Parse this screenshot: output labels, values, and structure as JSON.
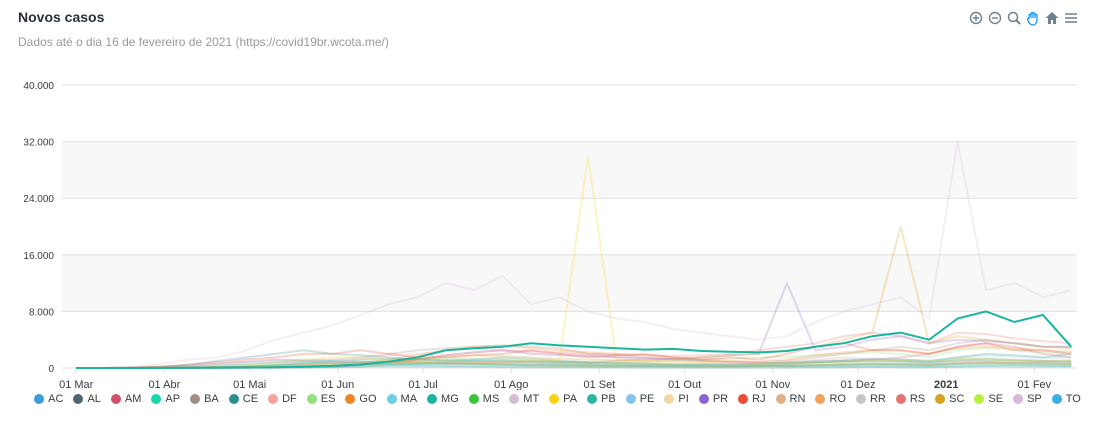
{
  "chart_data": {
    "type": "line",
    "title": "Novos casos",
    "subtitle": "Dados até o dia 16 de fevereiro de 2021 (https://covid19br.wcota.me/)",
    "highlighted": "MG",
    "grid": true,
    "ylim": [
      0,
      40000
    ],
    "yticks": [
      {
        "value": 0,
        "label": "0"
      },
      {
        "value": 8000,
        "label": "8.000"
      },
      {
        "value": 16000,
        "label": "16.000"
      },
      {
        "value": 24000,
        "label": "24.000"
      },
      {
        "value": 32000,
        "label": "32.000"
      },
      {
        "value": 40000,
        "label": "40.000"
      }
    ],
    "xlim": [
      "2020-02-25",
      "2021-02-16"
    ],
    "xticks": [
      {
        "value": "2020-03-01",
        "label": "01 Mar"
      },
      {
        "value": "2020-04-01",
        "label": "01 Abr"
      },
      {
        "value": "2020-05-01",
        "label": "01 Mai"
      },
      {
        "value": "2020-06-01",
        "label": "01 Jun"
      },
      {
        "value": "2020-07-01",
        "label": "01 Jul"
      },
      {
        "value": "2020-08-01",
        "label": "01 Ago"
      },
      {
        "value": "2020-09-01",
        "label": "01 Set"
      },
      {
        "value": "2020-10-01",
        "label": "01 Out"
      },
      {
        "value": "2020-11-01",
        "label": "01 Nov"
      },
      {
        "value": "2020-12-01",
        "label": "01 Dez"
      },
      {
        "value": "2021-01-01",
        "label": "2021"
      },
      {
        "value": "2021-02-01",
        "label": "01 Fev"
      }
    ],
    "x": [
      "2020-03-01",
      "2020-03-11",
      "2020-03-21",
      "2020-03-31",
      "2020-04-10",
      "2020-04-20",
      "2020-04-30",
      "2020-05-10",
      "2020-05-20",
      "2020-05-30",
      "2020-06-09",
      "2020-06-19",
      "2020-06-29",
      "2020-07-09",
      "2020-07-19",
      "2020-07-29",
      "2020-08-08",
      "2020-08-18",
      "2020-08-28",
      "2020-09-07",
      "2020-09-17",
      "2020-09-27",
      "2020-10-07",
      "2020-10-17",
      "2020-10-27",
      "2020-11-06",
      "2020-11-16",
      "2020-11-26",
      "2020-12-06",
      "2020-12-16",
      "2020-12-26",
      "2021-01-05",
      "2021-01-15",
      "2021-01-25",
      "2021-02-04",
      "2021-02-14"
    ],
    "series": [
      {
        "name": "AC",
        "color": "#3d9bd8",
        "values": [
          0,
          0,
          0,
          2,
          10,
          20,
          40,
          80,
          120,
          150,
          180,
          200,
          200,
          180,
          150,
          120,
          100,
          90,
          80,
          70,
          60,
          50,
          40,
          40,
          50,
          60,
          80,
          120,
          150,
          200,
          180,
          200,
          220,
          200,
          180,
          250
        ]
      },
      {
        "name": "AL",
        "color": "#4f6670",
        "values": [
          0,
          0,
          5,
          10,
          40,
          100,
          200,
          400,
          600,
          700,
          800,
          900,
          800,
          700,
          600,
          500,
          400,
          350,
          300,
          250,
          250,
          200,
          200,
          200,
          250,
          300,
          400,
          500,
          600,
          600,
          500,
          700,
          800,
          700,
          700,
          600
        ]
      },
      {
        "name": "AM",
        "color": "#d1506a",
        "values": [
          0,
          0,
          20,
          100,
          300,
          600,
          900,
          1200,
          1000,
          900,
          800,
          700,
          700,
          600,
          700,
          800,
          900,
          800,
          700,
          1000,
          1200,
          1300,
          1000,
          800,
          700,
          700,
          900,
          1000,
          1200,
          1500,
          2000,
          3000,
          3500,
          3000,
          2000,
          1500
        ]
      },
      {
        "name": "AP",
        "color": "#15d8a8",
        "values": [
          0,
          0,
          5,
          20,
          50,
          100,
          200,
          300,
          400,
          500,
          600,
          500,
          400,
          300,
          300,
          250,
          200,
          150,
          150,
          200,
          300,
          400,
          500,
          500,
          300,
          200,
          150,
          200,
          150,
          100,
          100,
          200,
          300,
          400,
          300,
          200
        ]
      },
      {
        "name": "BA",
        "color": "#a08f82",
        "values": [
          0,
          0,
          20,
          60,
          150,
          300,
          500,
          700,
          1000,
          1200,
          1500,
          2000,
          2500,
          2800,
          3000,
          3200,
          3000,
          2800,
          2000,
          1800,
          1500,
          1200,
          1000,
          900,
          800,
          1000,
          1500,
          2000,
          2500,
          3000,
          2500,
          3500,
          4000,
          3500,
          3000,
          3000
        ]
      },
      {
        "name": "CE",
        "color": "#2c8f8c",
        "values": [
          0,
          5,
          60,
          200,
          500,
          1000,
          1500,
          2000,
          2500,
          2000,
          1800,
          1500,
          1200,
          1000,
          1200,
          1500,
          1300,
          1000,
          800,
          700,
          600,
          500,
          500,
          400,
          500,
          600,
          800,
          1000,
          1200,
          1200,
          1000,
          1500,
          2000,
          1800,
          1500,
          2000
        ]
      },
      {
        "name": "DF",
        "color": "#f7a2a3",
        "values": [
          0,
          2,
          30,
          50,
          80,
          100,
          150,
          200,
          400,
          800,
          1200,
          1800,
          2000,
          2500,
          2800,
          2500,
          2200,
          2000,
          1800,
          1500,
          1200,
          1000,
          800,
          700,
          600,
          800,
          1200,
          1500,
          1300,
          1200,
          900,
          1000,
          1200,
          1100,
          1000,
          1000
        ]
      },
      {
        "name": "ES",
        "color": "#8ee17c",
        "values": [
          0,
          0,
          10,
          40,
          80,
          150,
          300,
          500,
          700,
          800,
          900,
          1000,
          1200,
          1400,
          1300,
          1200,
          1000,
          900,
          800,
          700,
          800,
          1000,
          1200,
          1300,
          1500,
          1600,
          1800,
          2000,
          2200,
          2000,
          1500,
          2500,
          2800,
          2500,
          2200,
          2000
        ]
      },
      {
        "name": "GO",
        "color": "#f28424",
        "values": [
          0,
          0,
          5,
          15,
          30,
          50,
          80,
          120,
          200,
          400,
          700,
          1200,
          1800,
          2500,
          3000,
          3200,
          2800,
          2500,
          2200,
          2000,
          1800,
          1500,
          1200,
          1000,
          900,
          1200,
          1800,
          2200,
          2500,
          2500,
          2000,
          2800,
          3000,
          2800,
          2500,
          2300
        ]
      },
      {
        "name": "MA",
        "color": "#6ad1e3",
        "values": [
          0,
          0,
          2,
          20,
          80,
          300,
          600,
          800,
          900,
          700,
          600,
          500,
          400,
          450,
          500,
          450,
          400,
          350,
          300,
          250,
          200,
          200,
          250,
          200,
          250,
          300,
          350,
          400,
          450,
          500,
          400,
          600,
          700,
          650,
          600,
          700
        ]
      },
      {
        "name": "MG",
        "color": "#1ab59f",
        "values": [
          0,
          0,
          3,
          20,
          40,
          60,
          80,
          120,
          200,
          300,
          500,
          900,
          1500,
          2500,
          2800,
          3000,
          3500,
          3200,
          3000,
          2800,
          2600,
          2700,
          2400,
          2300,
          2200,
          2400,
          3000,
          3500,
          4500,
          5000,
          4000,
          7000,
          8000,
          6500,
          7500,
          3000
        ]
      },
      {
        "name": "MS",
        "color": "#3ac23a",
        "values": [
          0,
          0,
          5,
          10,
          15,
          20,
          30,
          40,
          60,
          100,
          200,
          400,
          600,
          900,
          1000,
          1100,
          1000,
          900,
          800,
          700,
          600,
          500,
          400,
          400,
          600,
          800,
          900,
          1000,
          1100,
          1000,
          800,
          1200,
          1300,
          1100,
          1000,
          1000
        ]
      },
      {
        "name": "MT",
        "color": "#d3bdd7",
        "values": [
          0,
          0,
          5,
          10,
          15,
          20,
          40,
          60,
          100,
          200,
          400,
          700,
          1000,
          1200,
          1300,
          1200,
          1100,
          1000,
          900,
          800,
          700,
          600,
          500,
          450,
          500,
          700,
          900,
          1000,
          1100,
          900,
          800,
          1300,
          1400,
          1200,
          1000,
          1100
        ]
      },
      {
        "name": "PA",
        "color": "#f9d218",
        "values": [
          0,
          0,
          0,
          10,
          50,
          150,
          400,
          800,
          1200,
          1500,
          1500,
          1200,
          1000,
          900,
          800,
          900,
          1000,
          1100,
          30000,
          1200,
          900,
          800,
          700,
          600,
          500,
          600,
          800,
          900,
          1000,
          1100,
          900,
          1300,
          1200,
          1100,
          1000,
          1000
        ]
      },
      {
        "name": "PB",
        "color": "#2cb5a0",
        "values": [
          0,
          0,
          2,
          10,
          40,
          100,
          200,
          400,
          700,
          1000,
          1200,
          1300,
          1200,
          1100,
          1000,
          900,
          800,
          700,
          600,
          500,
          400,
          350,
          300,
          300,
          400,
          500,
          700,
          800,
          900,
          900,
          700,
          1000,
          1000,
          900,
          900,
          800
        ]
      },
      {
        "name": "PE",
        "color": "#84c4ef",
        "values": [
          0,
          2,
          20,
          80,
          200,
          500,
          800,
          1000,
          1200,
          1000,
          900,
          800,
          600,
          700,
          900,
          1000,
          800,
          600,
          500,
          500,
          400,
          400,
          500,
          500,
          600,
          700,
          1000,
          1200,
          1300,
          1200,
          1000,
          1500,
          1800,
          1600,
          1400,
          1500
        ]
      },
      {
        "name": "PI",
        "color": "#f2d6a4",
        "values": [
          0,
          0,
          2,
          10,
          30,
          60,
          100,
          200,
          300,
          400,
          600,
          700,
          800,
          900,
          800,
          700,
          650,
          600,
          500,
          450,
          400,
          350,
          300,
          300,
          350,
          400,
          500,
          600,
          650,
          600,
          500,
          700,
          800,
          700,
          650,
          600
        ]
      },
      {
        "name": "PR",
        "color": "#8a63d2",
        "values": [
          0,
          2,
          15,
          30,
          40,
          50,
          60,
          80,
          120,
          200,
          400,
          700,
          1200,
          1800,
          2200,
          2500,
          2000,
          1800,
          1700,
          1500,
          1400,
          1300,
          1500,
          1800,
          2000,
          12000,
          2500,
          3000,
          4000,
          4500,
          3500,
          4000,
          3800,
          3500,
          3000,
          3000
        ]
      },
      {
        "name": "RJ",
        "color": "#ea4d34",
        "values": [
          0,
          5,
          50,
          200,
          500,
          800,
          1200,
          1500,
          2000,
          2000,
          2500,
          2000,
          1500,
          1500,
          1800,
          2000,
          2500,
          2000,
          1500,
          1800,
          2000,
          1500,
          1200,
          1500,
          1200,
          2000,
          3000,
          3500,
          2500,
          2500,
          2000,
          3000,
          3500,
          2500,
          2500,
          2000
        ]
      },
      {
        "name": "RN",
        "color": "#ddb185",
        "values": [
          0,
          0,
          5,
          15,
          40,
          80,
          150,
          300,
          500,
          700,
          800,
          900,
          800,
          600,
          500,
          400,
          350,
          300,
          250,
          200,
          150,
          150,
          200,
          200,
          250,
          300,
          400,
          500,
          600,
          550,
          450,
          700,
          800,
          750,
          700,
          650
        ]
      },
      {
        "name": "RO",
        "color": "#f2a15a",
        "values": [
          0,
          0,
          2,
          10,
          30,
          60,
          120,
          250,
          400,
          500,
          600,
          700,
          800,
          900,
          800,
          700,
          600,
          500,
          450,
          400,
          350,
          300,
          250,
          250,
          300,
          350,
          400,
          500,
          550,
          500,
          400,
          600,
          700,
          650,
          600,
          550
        ]
      },
      {
        "name": "RR",
        "color": "#c6c6c6",
        "values": [
          0,
          0,
          2,
          5,
          10,
          30,
          60,
          120,
          200,
          300,
          400,
          350,
          300,
          250,
          200,
          150,
          120,
          100,
          100,
          120,
          150,
          150,
          120,
          100,
          100,
          120,
          150,
          200,
          250,
          200,
          150,
          200,
          250,
          300,
          280,
          250
        ]
      },
      {
        "name": "RS",
        "color": "#e67373",
        "values": [
          0,
          2,
          20,
          40,
          60,
          80,
          100,
          150,
          200,
          300,
          500,
          800,
          1200,
          1800,
          2200,
          2500,
          2400,
          2200,
          2000,
          1900,
          1800,
          1700,
          1800,
          2000,
          2500,
          3000,
          3500,
          4500,
          5000,
          4500,
          3500,
          5000,
          4800,
          4200,
          3800,
          3500
        ]
      },
      {
        "name": "SC",
        "color": "#d8a11d",
        "values": [
          0,
          2,
          20,
          40,
          50,
          60,
          80,
          100,
          150,
          300,
          500,
          800,
          1200,
          1600,
          1800,
          1700,
          1500,
          1300,
          1200,
          1100,
          1000,
          1200,
          1500,
          1800,
          2000,
          2500,
          3000,
          4000,
          5000,
          20000,
          3500,
          4500,
          4000,
          3500,
          3000,
          2800
        ]
      },
      {
        "name": "SE",
        "color": "#b3f03b",
        "values": [
          0,
          0,
          2,
          10,
          20,
          40,
          80,
          150,
          300,
          400,
          500,
          600,
          700,
          650,
          600,
          500,
          400,
          350,
          300,
          250,
          200,
          200,
          250,
          250,
          300,
          350,
          400,
          450,
          500,
          450,
          400,
          500,
          550,
          500,
          450,
          400
        ]
      },
      {
        "name": "SP",
        "color": "#d7b7da",
        "values": [
          0,
          10,
          150,
          600,
          1200,
          1500,
          2500,
          4000,
          5000,
          6000,
          7500,
          9000,
          10000,
          12000,
          11000,
          13000,
          9000,
          10000,
          8000,
          7000,
          6500,
          5500,
          5000,
          4500,
          4000,
          4500,
          6500,
          8000,
          9000,
          10000,
          7000,
          32000,
          11000,
          12000,
          10000,
          11000
        ]
      },
      {
        "name": "TO",
        "color": "#3aaee0",
        "values": [
          0,
          0,
          2,
          5,
          10,
          20,
          40,
          80,
          150,
          250,
          400,
          500,
          600,
          650,
          600,
          550,
          500,
          450,
          400,
          350,
          300,
          280,
          250,
          250,
          280,
          300,
          350,
          400,
          450,
          400,
          350,
          500,
          550,
          500,
          450,
          400
        ]
      }
    ]
  }
}
